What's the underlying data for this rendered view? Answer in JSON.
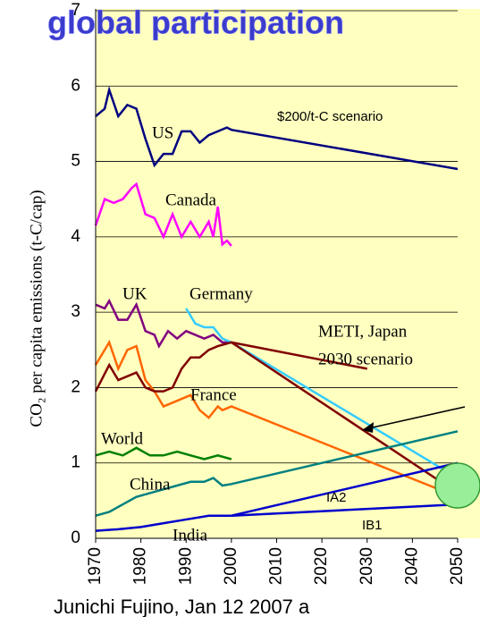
{
  "chart_data": {
    "type": "line",
    "title": "global participation",
    "footer": "Junichi Fujino, Jan 12 2007 a",
    "y_label": "CO₂ per capita emissions (t-C/cap)",
    "annotations": [
      "$200/t-C scenario",
      "METI, Japan",
      "2030 scenario"
    ],
    "xlim": [
      1970,
      2050
    ],
    "xticks": [
      1970,
      1980,
      1990,
      2000,
      2010,
      2020,
      2030,
      2040,
      2050
    ],
    "ylim": [
      0,
      7
    ],
    "yticks": [
      0,
      1,
      2,
      3,
      4,
      5,
      6,
      7
    ],
    "grid": true,
    "series": [
      {
        "name": "US",
        "color": "#000080",
        "x": [
          1970,
          1972,
          1973,
          1975,
          1977,
          1979,
          1981,
          1983,
          1985,
          1987,
          1989,
          1991,
          1993,
          1995,
          1997,
          1999,
          2000,
          2050
        ],
        "values": [
          5.6,
          5.7,
          5.95,
          5.6,
          5.75,
          5.7,
          5.3,
          4.95,
          5.1,
          5.1,
          5.4,
          5.4,
          5.25,
          5.35,
          5.4,
          5.45,
          5.42,
          4.9
        ]
      },
      {
        "name": "Canada",
        "color": "#ff00ff",
        "x": [
          1970,
          1972,
          1974,
          1976,
          1978,
          1979,
          1981,
          1983,
          1985,
          1987,
          1989,
          1991,
          1993,
          1995,
          1996,
          1997,
          1998,
          1999,
          2000
        ],
        "values": [
          4.15,
          4.5,
          4.45,
          4.5,
          4.65,
          4.7,
          4.3,
          4.25,
          4.0,
          4.3,
          4.0,
          4.2,
          4.0,
          4.2,
          4.0,
          4.4,
          3.9,
          3.95,
          3.88
        ]
      },
      {
        "name": "UK",
        "color": "#800080",
        "x": [
          1970,
          1972,
          1973,
          1975,
          1977,
          1979,
          1981,
          1983,
          1984,
          1986,
          1988,
          1990,
          1992,
          1994,
          1996,
          1998,
          2000
        ],
        "values": [
          3.1,
          3.05,
          3.15,
          2.9,
          2.9,
          3.1,
          2.75,
          2.7,
          2.55,
          2.75,
          2.65,
          2.75,
          2.7,
          2.65,
          2.7,
          2.6,
          2.6
        ]
      },
      {
        "name": "Germany",
        "color": "#33ccff",
        "x": [
          1990,
          1992,
          1994,
          1996,
          1998,
          2000,
          2050
        ],
        "values": [
          3.05,
          2.85,
          2.8,
          2.8,
          2.65,
          2.6,
          0.8
        ]
      },
      {
        "name": "France",
        "color": "#ff6600",
        "x": [
          1970,
          1973,
          1975,
          1977,
          1979,
          1981,
          1983,
          1985,
          1987,
          1989,
          1991,
          1993,
          1995,
          1997,
          1998,
          2000,
          2050
        ],
        "values": [
          2.3,
          2.6,
          2.25,
          2.5,
          2.55,
          2.1,
          1.95,
          1.75,
          1.8,
          1.85,
          1.9,
          1.7,
          1.6,
          1.75,
          1.7,
          1.75,
          0.55
        ]
      },
      {
        "color": "#800000",
        "x": [
          1970,
          1973,
          1975,
          1977,
          1979,
          1981,
          1983,
          1985,
          1987,
          1989,
          1991,
          1993,
          1995,
          1997,
          2000,
          2050
        ],
        "values": [
          1.95,
          2.3,
          2.1,
          2.15,
          2.2,
          2.0,
          1.95,
          1.95,
          2.0,
          2.25,
          2.4,
          2.4,
          2.5,
          2.55,
          2.6,
          0.6
        ]
      },
      {
        "color": "#800000",
        "x": [
          2000,
          2030
        ],
        "values": [
          2.6,
          2.25
        ]
      },
      {
        "name": "World",
        "color": "#008000",
        "x": [
          1970,
          1973,
          1976,
          1979,
          1982,
          1985,
          1988,
          1991,
          1994,
          1997,
          2000
        ],
        "values": [
          1.1,
          1.15,
          1.1,
          1.2,
          1.1,
          1.1,
          1.15,
          1.1,
          1.05,
          1.1,
          1.05
        ]
      },
      {
        "name": "China",
        "color": "#008080",
        "x": [
          1970,
          1973,
          1976,
          1979,
          1982,
          1985,
          1988,
          1991,
          1994,
          1996,
          1998,
          2000,
          2050
        ],
        "values": [
          0.3,
          0.35,
          0.45,
          0.55,
          0.6,
          0.65,
          0.7,
          0.75,
          0.75,
          0.8,
          0.7,
          0.72,
          1.42
        ]
      },
      {
        "name": "India",
        "color": "#0000cc",
        "x": [
          1970,
          1975,
          1980,
          1985,
          1990,
          1995,
          2000
        ],
        "values": [
          0.1,
          0.12,
          0.15,
          0.2,
          0.25,
          0.3,
          0.3
        ]
      },
      {
        "name": "IA2",
        "color": "#0000cc",
        "x": [
          2000,
          2050
        ],
        "values": [
          0.3,
          1.0
        ]
      },
      {
        "name": "IB1",
        "color": "#0000cc",
        "x": [
          2000,
          2050
        ],
        "values": [
          0.3,
          0.45
        ]
      }
    ]
  }
}
